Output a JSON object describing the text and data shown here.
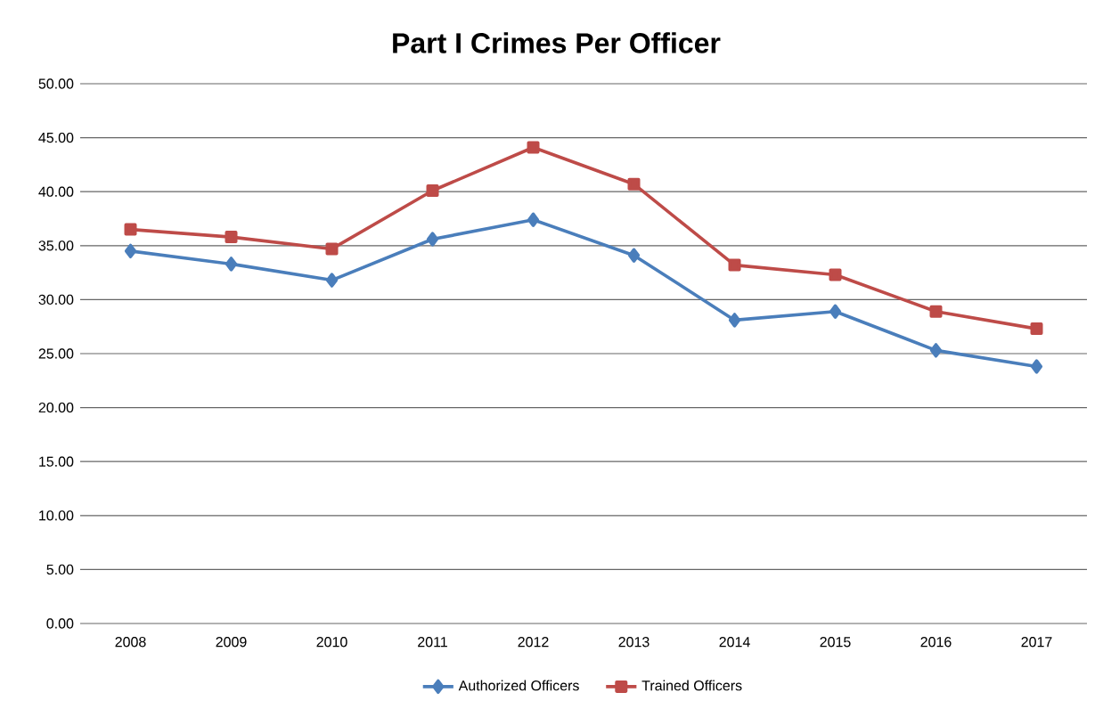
{
  "chart_data": {
    "type": "line",
    "title": "Part I Crimes Per Officer",
    "categories": [
      "2008",
      "2009",
      "2010",
      "2011",
      "2012",
      "2013",
      "2014",
      "2015",
      "2016",
      "2017"
    ],
    "series": [
      {
        "name": "Authorized Officers",
        "color": "#4a7ebb",
        "marker": "diamond",
        "values": [
          34.5,
          33.3,
          31.8,
          35.6,
          37.4,
          34.1,
          28.1,
          28.9,
          25.3,
          23.8
        ]
      },
      {
        "name": "Trained Officers",
        "color": "#be4b48",
        "marker": "square",
        "values": [
          36.5,
          35.8,
          34.7,
          40.1,
          44.1,
          40.7,
          33.2,
          32.3,
          28.9,
          27.3
        ]
      }
    ],
    "ylim": [
      0,
      50
    ],
    "yticks": [
      {
        "value": 0,
        "label": "0.00"
      },
      {
        "value": 5,
        "label": "5.00"
      },
      {
        "value": 10,
        "label": "10.00"
      },
      {
        "value": 15,
        "label": "15.00"
      },
      {
        "value": 20,
        "label": "20.00"
      },
      {
        "value": 25,
        "label": "25.00"
      },
      {
        "value": 30,
        "label": "30.00"
      },
      {
        "value": 35,
        "label": "35.00"
      },
      {
        "value": 40,
        "label": "40.00"
      },
      {
        "value": 45,
        "label": "45.00"
      },
      {
        "value": 50,
        "label": "50.00"
      }
    ],
    "grid": "y",
    "legend": "bottom",
    "line_style": "solid"
  }
}
